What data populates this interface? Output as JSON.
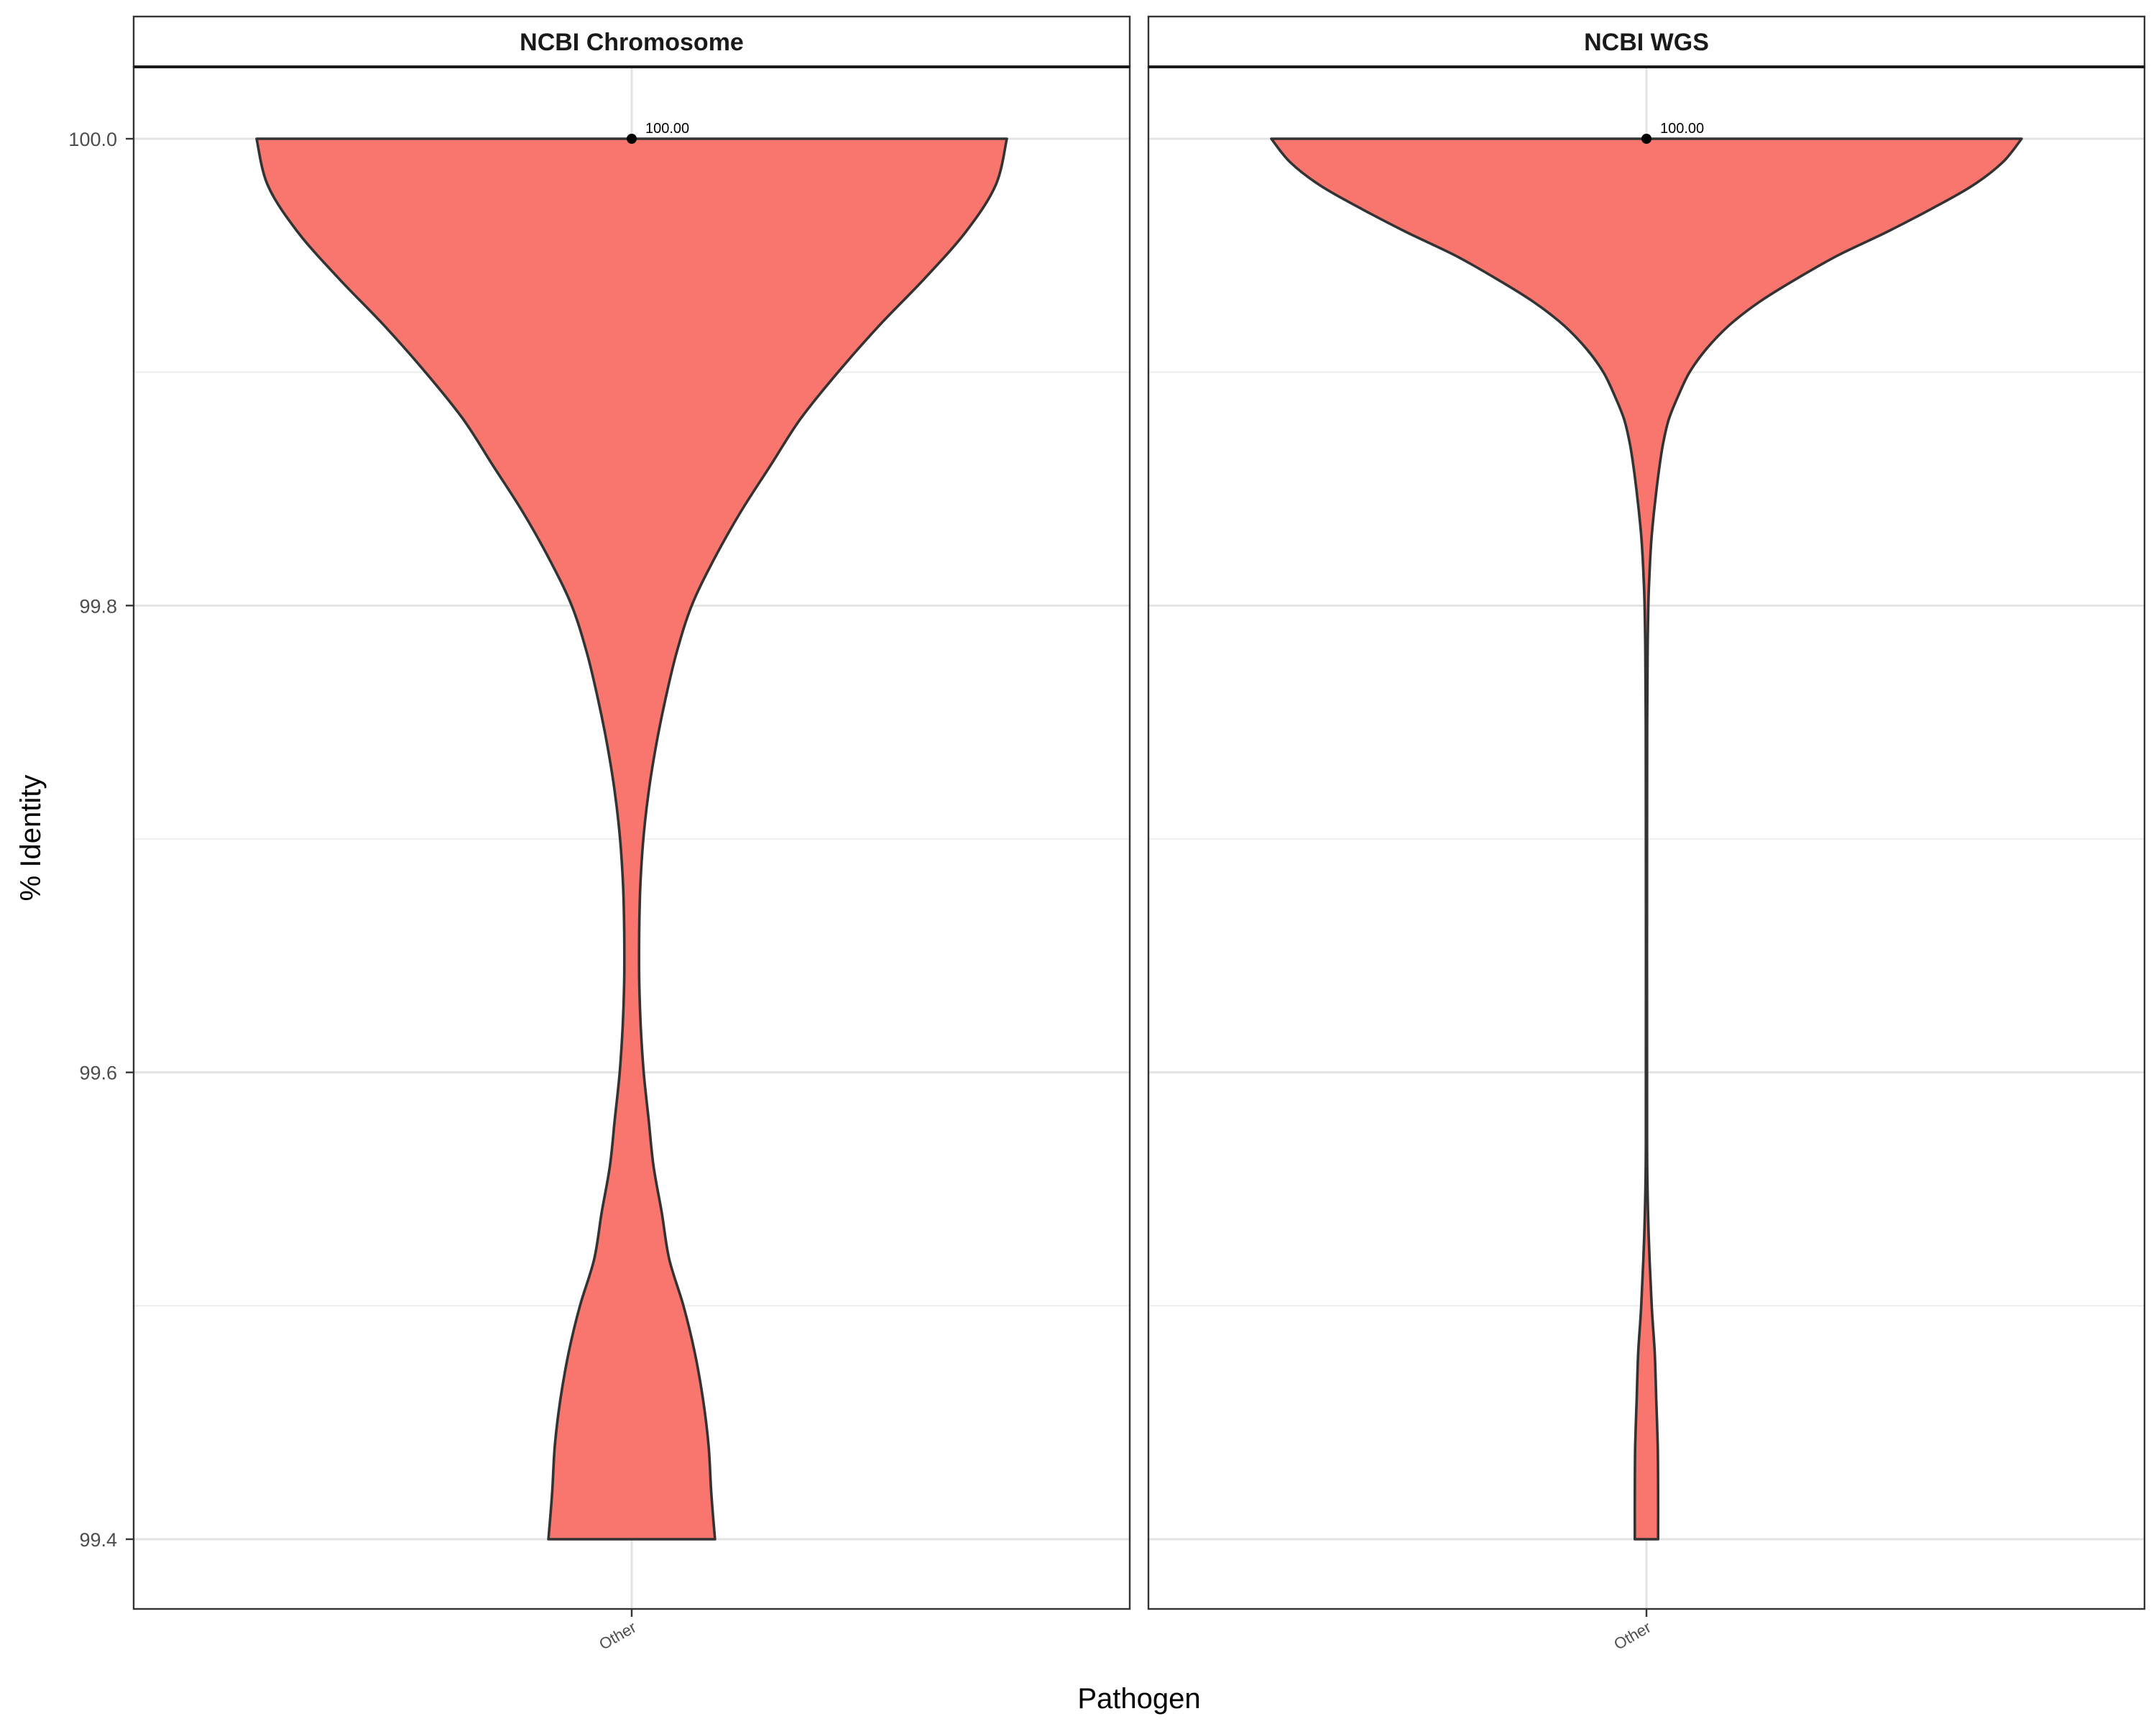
{
  "chart_data": {
    "type": "violin",
    "xlabel": "Pathogen",
    "ylabel": "% Identity",
    "ylim": [
      99.372,
      100.03
    ],
    "y_ticks": [
      {
        "value": 99.4,
        "label": "99.4"
      },
      {
        "value": 99.6,
        "label": "99.6"
      },
      {
        "value": 99.8,
        "label": "99.8"
      },
      {
        "value": 100.0,
        "label": "100.0"
      }
    ],
    "grid": true,
    "fill_color": "#F8766D",
    "outline_color": "#333333",
    "panels": [
      {
        "title": "NCBI Chromosome",
        "category": "Other",
        "median": 100.0,
        "median_label": "100.00",
        "y_range": [
          99.4,
          100.0
        ],
        "density": [
          [
            100.0,
            1.0
          ],
          [
            99.98,
            0.97
          ],
          [
            99.96,
            0.89
          ],
          [
            99.94,
            0.78
          ],
          [
            99.92,
            0.66
          ],
          [
            99.9,
            0.55
          ],
          [
            99.88,
            0.45
          ],
          [
            99.86,
            0.37
          ],
          [
            99.84,
            0.29
          ],
          [
            99.82,
            0.22
          ],
          [
            99.8,
            0.16
          ],
          [
            99.78,
            0.12
          ],
          [
            99.76,
            0.09
          ],
          [
            99.74,
            0.065
          ],
          [
            99.72,
            0.045
          ],
          [
            99.7,
            0.031
          ],
          [
            99.68,
            0.023
          ],
          [
            99.66,
            0.02
          ],
          [
            99.64,
            0.02
          ],
          [
            99.62,
            0.024
          ],
          [
            99.6,
            0.032
          ],
          [
            99.58,
            0.045
          ],
          [
            99.56,
            0.058
          ],
          [
            99.54,
            0.08
          ],
          [
            99.52,
            0.1
          ],
          [
            99.5,
            0.138
          ],
          [
            99.48,
            0.168
          ],
          [
            99.46,
            0.19
          ],
          [
            99.44,
            0.205
          ],
          [
            99.42,
            0.212
          ],
          [
            99.4,
            0.222
          ]
        ]
      },
      {
        "title": "NCBI WGS",
        "category": "Other",
        "median": 100.0,
        "median_label": "100.00",
        "y_range": [
          99.4,
          100.0
        ],
        "density": [
          [
            100.0,
            1.0
          ],
          [
            99.99,
            0.95
          ],
          [
            99.98,
            0.87
          ],
          [
            99.97,
            0.76
          ],
          [
            99.96,
            0.64
          ],
          [
            99.95,
            0.51
          ],
          [
            99.94,
            0.4
          ],
          [
            99.93,
            0.3
          ],
          [
            99.92,
            0.22
          ],
          [
            99.91,
            0.16
          ],
          [
            99.9,
            0.115
          ],
          [
            99.89,
            0.085
          ],
          [
            99.88,
            0.06
          ],
          [
            99.87,
            0.045
          ],
          [
            99.86,
            0.035
          ],
          [
            99.85,
            0.027
          ],
          [
            99.84,
            0.02
          ],
          [
            99.83,
            0.014
          ],
          [
            99.82,
            0.01
          ],
          [
            99.81,
            0.007
          ],
          [
            99.8,
            0.005
          ],
          [
            99.78,
            0.003
          ],
          [
            99.75,
            0.002
          ],
          [
            99.7,
            0.0015
          ],
          [
            99.6,
            0.0015
          ],
          [
            99.56,
            0.002
          ],
          [
            99.53,
            0.006
          ],
          [
            99.5,
            0.014
          ],
          [
            99.48,
            0.022
          ],
          [
            99.46,
            0.026
          ],
          [
            99.44,
            0.03
          ],
          [
            99.42,
            0.031
          ],
          [
            99.4,
            0.031
          ]
        ]
      }
    ]
  }
}
